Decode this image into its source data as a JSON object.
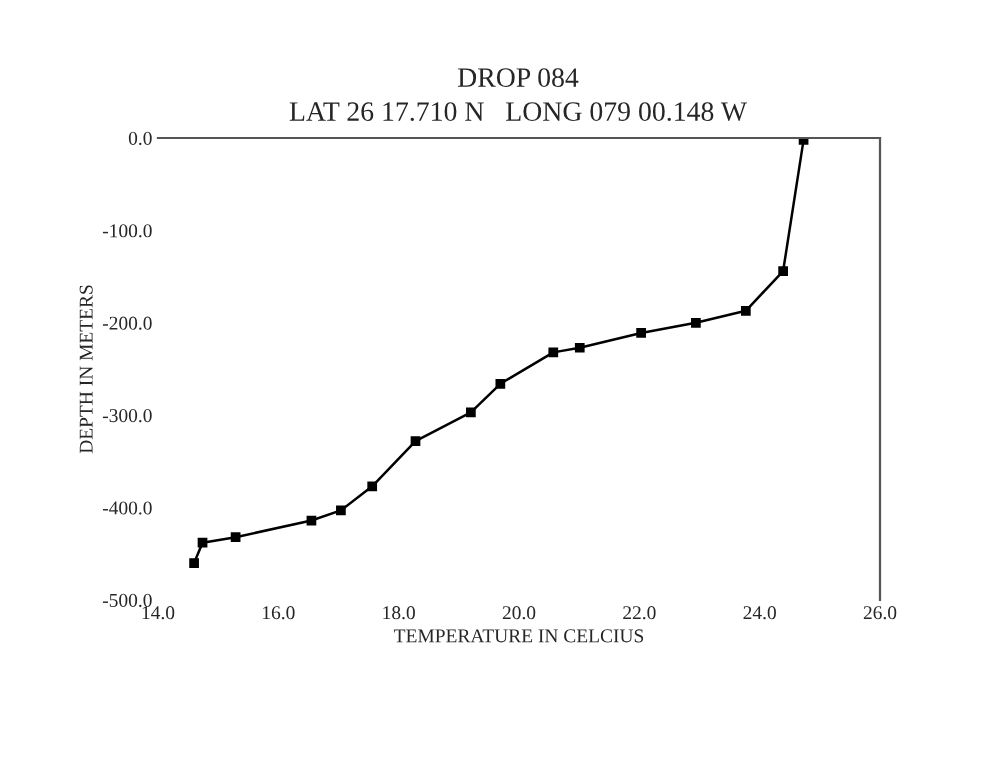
{
  "chart_data": {
    "type": "line",
    "title": "DROP 084",
    "subtitle": "LAT 26 17.710 N   LONG 079 00.148 W",
    "xlabel": "TEMPERATURE IN CELCIUS",
    "ylabel": "DEPTH IN METERS",
    "series": [
      {
        "color": "#000000",
        "x": [
          14.6,
          14.74,
          15.29,
          16.55,
          17.04,
          17.56,
          18.28,
          19.2,
          19.69,
          20.57,
          21.01,
          22.03,
          22.94,
          23.77,
          24.39,
          24.73
        ],
        "values": [
          -460,
          -438,
          -432,
          -414,
          -403,
          -377,
          -328,
          -297,
          -266,
          -232,
          -227,
          -211,
          -200,
          -187,
          -144,
          -2
        ]
      }
    ],
    "marker": "square",
    "line_style": "solid",
    "grid": false,
    "legend": false,
    "xlim": [
      14,
      26
    ],
    "xticks": [
      {
        "value": 14,
        "label": "14.0"
      },
      {
        "value": 16,
        "label": "16.0"
      },
      {
        "value": 18,
        "label": "18.0"
      },
      {
        "value": 20,
        "label": "20.0"
      },
      {
        "value": 22,
        "label": "22.0"
      },
      {
        "value": 24,
        "label": "24.0"
      },
      {
        "value": 26,
        "label": "26.0"
      }
    ],
    "ylim": [
      -500,
      0
    ],
    "yticks": [
      {
        "value": 0,
        "label": "0.0"
      },
      {
        "value": -100,
        "label": "-100.0"
      },
      {
        "value": -200,
        "label": "-200.0"
      },
      {
        "value": -300,
        "label": "-300.0"
      },
      {
        "value": -400,
        "label": "-400.0"
      },
      {
        "value": -500,
        "label": "-500.0"
      }
    ]
  }
}
